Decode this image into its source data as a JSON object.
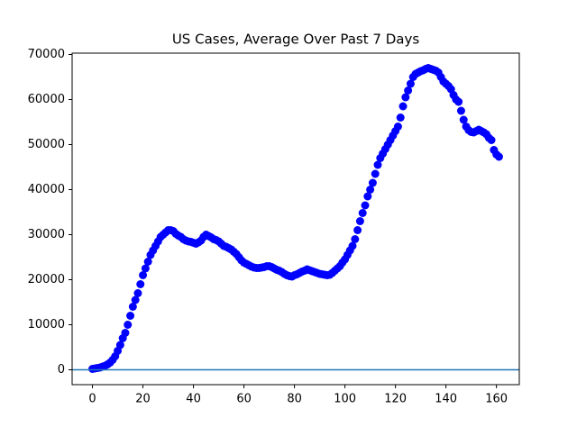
{
  "chart_data": {
    "type": "scatter",
    "title": "US Cases, Average Over Past 7 Days",
    "x": [
      0,
      1,
      2,
      3,
      4,
      5,
      6,
      7,
      8,
      9,
      10,
      11,
      12,
      13,
      14,
      15,
      16,
      17,
      18,
      19,
      20,
      21,
      22,
      23,
      24,
      25,
      26,
      27,
      28,
      29,
      30,
      31,
      32,
      33,
      34,
      35,
      36,
      37,
      38,
      39,
      40,
      41,
      42,
      43,
      44,
      45,
      46,
      47,
      48,
      49,
      50,
      51,
      52,
      53,
      54,
      55,
      56,
      57,
      58,
      59,
      60,
      61,
      62,
      63,
      64,
      65,
      66,
      67,
      68,
      69,
      70,
      71,
      72,
      73,
      74,
      75,
      76,
      77,
      78,
      79,
      80,
      81,
      82,
      83,
      84,
      85,
      86,
      87,
      88,
      89,
      90,
      91,
      92,
      93,
      94,
      95,
      96,
      97,
      98,
      99,
      100,
      101,
      102,
      103,
      104,
      105,
      106,
      107,
      108,
      109,
      110,
      111,
      112,
      113,
      114,
      115,
      116,
      117,
      118,
      119,
      120,
      121,
      122,
      123,
      124,
      125,
      126,
      127,
      128,
      129,
      130,
      131,
      132,
      133,
      134,
      135,
      136,
      137,
      138,
      139,
      140,
      141,
      142,
      143,
      144,
      145,
      146,
      147,
      148,
      149,
      150,
      151,
      152,
      153,
      154,
      155,
      156,
      157,
      158,
      159,
      160,
      161
    ],
    "values": [
      200,
      300,
      400,
      500,
      700,
      900,
      1200,
      1600,
      2200,
      3000,
      4200,
      5500,
      7000,
      8200,
      10000,
      12000,
      14000,
      15500,
      17000,
      19000,
      21000,
      22500,
      24000,
      25500,
      26500,
      27500,
      28500,
      29500,
      30000,
      30500,
      31000,
      31000,
      30800,
      30200,
      29800,
      29500,
      29000,
      28700,
      28500,
      28400,
      28200,
      28000,
      28300,
      28700,
      29500,
      30000,
      29700,
      29400,
      29000,
      28800,
      28500,
      28000,
      27500,
      27300,
      27000,
      26700,
      26200,
      25700,
      25000,
      24300,
      23800,
      23500,
      23200,
      22900,
      22700,
      22600,
      22600,
      22700,
      22800,
      23000,
      23000,
      22800,
      22500,
      22200,
      22000,
      21700,
      21300,
      21000,
      20800,
      20700,
      21000,
      21200,
      21500,
      21800,
      22000,
      22300,
      22100,
      21900,
      21700,
      21500,
      21300,
      21200,
      21100,
      21000,
      21100,
      21500,
      22000,
      22500,
      23000,
      23800,
      24500,
      25500,
      26500,
      27500,
      29000,
      31000,
      33000,
      34800,
      36500,
      38500,
      40000,
      41500,
      43500,
      45500,
      47000,
      48000,
      49000,
      50000,
      51000,
      52000,
      53000,
      54000,
      56000,
      58500,
      60500,
      62000,
      63500,
      65000,
      65700,
      66000,
      66300,
      66500,
      66800,
      67000,
      66800,
      66600,
      66400,
      66000,
      65000,
      64000,
      63500,
      63000,
      62300,
      61000,
      60000,
      59500,
      57500,
      55500,
      54000,
      53200,
      52800,
      52700,
      53000,
      53300,
      53000,
      52700,
      52300,
      51500,
      51000,
      48800,
      47800,
      47300
    ],
    "color": "#0000ff",
    "hline": 0,
    "hline_color": "#1f77b4",
    "xlim": [
      -8.05,
      169.05
    ],
    "ylim": [
      -3300,
      70300
    ],
    "xticks": [
      0,
      20,
      40,
      60,
      80,
      100,
      120,
      140,
      160
    ],
    "yticks": [
      0,
      10000,
      20000,
      30000,
      40000,
      50000,
      60000,
      70000
    ]
  }
}
